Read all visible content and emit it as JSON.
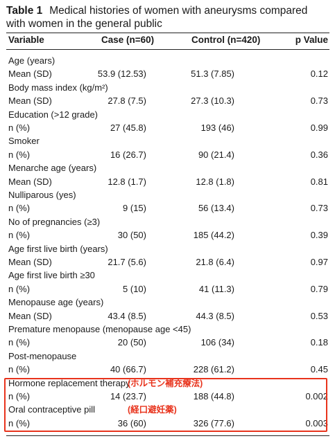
{
  "caption": {
    "label": "Table 1",
    "text": "Medical histories of women with aneurysms compared with women in the general public"
  },
  "headers": {
    "variable": "Variable",
    "case": "Case (n=60)",
    "control": "Control (n=420)",
    "p": "p Value"
  },
  "rows": [
    {
      "variable": "Age (years)",
      "stat": "Mean (SD)",
      "case": "53.9 (12.53)",
      "control": "51.3 (7.85)",
      "p": "0.12"
    },
    {
      "variable": "Body mass index (kg/m²)",
      "stat": "Mean (SD)",
      "case": "27.8 (7.5)",
      "control": "27.3 (10.3)",
      "p": "0.73"
    },
    {
      "variable": "Education (>12 grade)",
      "stat": "n (%)",
      "case": "27 (45.8)",
      "control": "193 (46)",
      "p": "0.99"
    },
    {
      "variable": "Smoker",
      "stat": "n (%)",
      "case": "16 (26.7)",
      "control": "90 (21.4)",
      "p": "0.36"
    },
    {
      "variable": "Menarche age (years)",
      "stat": "Mean (SD)",
      "case": "12.8 (1.7)",
      "control": "12.8 (1.8)",
      "p": "0.81"
    },
    {
      "variable": "Nulliparous (yes)",
      "stat": "n (%)",
      "case": "9 (15)",
      "control": "56 (13.4)",
      "p": "0.73"
    },
    {
      "variable": "No of pregnancies (≥3)",
      "stat": "n (%)",
      "case": "30 (50)",
      "control": "185 (44.2)",
      "p": "0.39"
    },
    {
      "variable": "Age first live birth (years)",
      "stat": "Mean (SD)",
      "case": "21.7 (5.6)",
      "control": "21.8 (6.4)",
      "p": "0.97"
    },
    {
      "variable": "Age first live birth ≥30",
      "stat": "n (%)",
      "case": "5 (10)",
      "control": "41 (11.3)",
      "p": "0.79"
    },
    {
      "variable": "Menopause age (years)",
      "stat": "Mean (SD)",
      "case": "43.4 (8.5)",
      "control": "44.3 (8.5)",
      "p": "0.53"
    },
    {
      "variable": "Premature menopause (menopause age <45)",
      "stat": "n (%)",
      "case": "20 (50)",
      "control": "106 (34)",
      "p": "0.18"
    },
    {
      "variable": "Post-menopause",
      "stat": "n (%)",
      "case": "40 (66.7)",
      "control": "228 (61.2)",
      "p": "0.45"
    },
    {
      "variable": "Hormone replacement therapy",
      "note": "(ホルモン補充療法)",
      "stat": "n (%)",
      "case": "14 (23.7)",
      "control": "188 (44.8)",
      "p": "0.002"
    },
    {
      "variable": "Oral contraceptive pill",
      "note": "(経口避妊薬)",
      "stat": "n (%)",
      "case": "36 (60)",
      "control": "326 (77.6)",
      "p": "0.003"
    }
  ],
  "highlight_color": "#e8331c"
}
